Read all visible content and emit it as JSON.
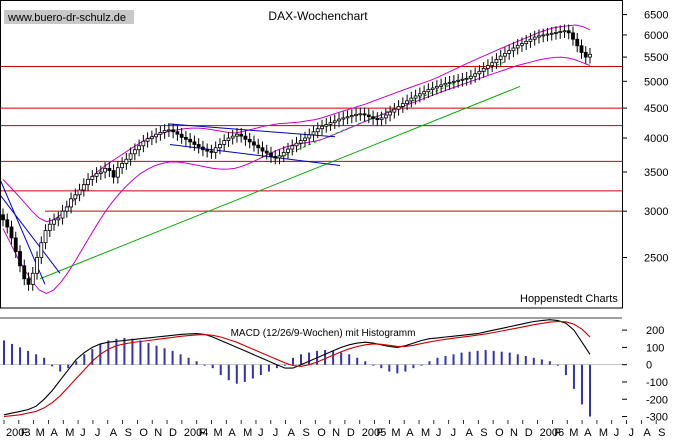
{
  "header": {
    "watermark": "www.buero-dr-schulz.de",
    "title": "DAX-Wochenchart",
    "source": "Hoppenstedt Charts",
    "macd_title": "MACD (12/26/9-Wochen) mit Histogramm"
  },
  "colors": {
    "candles": "#000000",
    "bollinger": "#cc00cc",
    "trend_green": "#00aa00",
    "trend_blue": "#0000cc",
    "support_red": "#cc0000",
    "macd_line": "#000000",
    "signal_line": "#cc0000",
    "histogram": "#3333aa",
    "watermark_bg": "#c8c8c8"
  },
  "chart_data": [
    {
      "type": "candlestick",
      "title": "DAX-Wochenchart",
      "scale": "log",
      "ylim": [
        2050,
        6750
      ],
      "y_ticks": [
        2500,
        3000,
        3500,
        4000,
        4500,
        5000,
        5500,
        6000,
        6500
      ],
      "x_month_labels": [
        "2003",
        "F",
        "M",
        "A",
        "M",
        "J",
        "J",
        "A",
        "S",
        "O",
        "N",
        "D",
        "2004",
        "F",
        "M",
        "A",
        "M",
        "J",
        "J",
        "A",
        "S",
        "O",
        "N",
        "D",
        "2005",
        "F",
        "M",
        "A",
        "M",
        "J",
        "J",
        "A",
        "S",
        "O",
        "N",
        "D",
        "2006",
        "F",
        "M",
        "A",
        "M",
        "J",
        "J",
        "A",
        "S"
      ],
      "horizontal_levels": [
        5300,
        4500,
        4200,
        3650,
        3250,
        3000
      ],
      "closes": [
        2900,
        2820,
        2700,
        2560,
        2420,
        2300,
        2250,
        2350,
        2500,
        2650,
        2780,
        2850,
        2900,
        2920,
        3000,
        3050,
        3150,
        3200,
        3260,
        3330,
        3400,
        3440,
        3480,
        3500,
        3550,
        3520,
        3430,
        3560,
        3620,
        3680,
        3760,
        3820,
        3880,
        3950,
        3990,
        4020,
        4060,
        4090,
        4120,
        4130,
        4100,
        4060,
        4010,
        3980,
        3940,
        3900,
        3860,
        3820,
        3800,
        3780,
        3850,
        3900,
        3960,
        4000,
        4030,
        4060,
        4030,
        3980,
        3940,
        3890,
        3850,
        3800,
        3770,
        3720,
        3700,
        3730,
        3780,
        3830,
        3880,
        3920,
        3960,
        4000,
        4050,
        4100,
        4150,
        4190,
        4220,
        4250,
        4280,
        4310,
        4330,
        4350,
        4370,
        4390,
        4400,
        4380,
        4350,
        4320,
        4300,
        4330,
        4380,
        4430,
        4480,
        4530,
        4580,
        4630,
        4680,
        4720,
        4760,
        4800,
        4840,
        4870,
        4900,
        4930,
        4960,
        4980,
        5000,
        5020,
        5040,
        5060,
        5100,
        5150,
        5200,
        5260,
        5320,
        5380,
        5450,
        5520,
        5580,
        5640,
        5700,
        5760,
        5800,
        5850,
        5900,
        5950,
        5980,
        6000,
        6020,
        6040,
        6060,
        6080,
        6100,
        6050,
        5900,
        5750,
        5600,
        5500,
        5560
      ],
      "bollinger_upper": [
        3400,
        3300,
        3200,
        3100,
        3000,
        2920,
        2880,
        2900,
        2960,
        3050,
        3160,
        3280,
        3400,
        3500,
        3580,
        3650,
        3720,
        3790,
        3860,
        3930,
        3990,
        4040,
        4080,
        4110,
        4130,
        4150,
        4160,
        4160,
        4150,
        4130,
        4110,
        4090,
        4080,
        4100,
        4130,
        4160,
        4190,
        4210,
        4230,
        4240,
        4250,
        4260,
        4280,
        4300,
        4330,
        4370,
        4410,
        4450,
        4490,
        4530,
        4570,
        4620,
        4670,
        4720,
        4770,
        4820,
        4870,
        4920,
        4970,
        5020,
        5080,
        5150,
        5220,
        5290,
        5360,
        5430,
        5500,
        5570,
        5640,
        5710,
        5780,
        5850,
        5920,
        5990,
        6060,
        6120,
        6170,
        6200,
        6220,
        6240,
        6200,
        6120
      ],
      "bollinger_lower": [
        2800,
        2650,
        2500,
        2380,
        2280,
        2200,
        2170,
        2200,
        2270,
        2360,
        2470,
        2590,
        2720,
        2850,
        2980,
        3100,
        3210,
        3310,
        3400,
        3480,
        3540,
        3590,
        3620,
        3640,
        3640,
        3630,
        3610,
        3590,
        3570,
        3550,
        3540,
        3540,
        3550,
        3580,
        3620,
        3670,
        3720,
        3770,
        3820,
        3860,
        3890,
        3910,
        3930,
        3950,
        3980,
        4020,
        4070,
        4120,
        4170,
        4220,
        4270,
        4320,
        4370,
        4420,
        4470,
        4520,
        4570,
        4620,
        4670,
        4720,
        4770,
        4820,
        4870,
        4920,
        4970,
        5020,
        5070,
        5120,
        5170,
        5220,
        5270,
        5320,
        5360,
        5400,
        5440,
        5470,
        5490,
        5500,
        5480,
        5440,
        5380,
        5320
      ]
    },
    {
      "type": "line+bar",
      "title": "MACD (12/26/9-Wochen) mit Histogramm",
      "ylim": [
        -320,
        270
      ],
      "y_ticks": [
        200,
        100,
        0,
        -100,
        -200,
        -300
      ],
      "macd": [
        -290,
        -280,
        -270,
        -260,
        -240,
        -200,
        -150,
        -90,
        -30,
        30,
        70,
        100,
        120,
        130,
        135,
        140,
        145,
        150,
        155,
        160,
        165,
        170,
        175,
        178,
        180,
        175,
        160,
        140,
        120,
        100,
        80,
        60,
        40,
        20,
        0,
        -20,
        -20,
        0,
        20,
        40,
        60,
        80,
        100,
        115,
        125,
        130,
        125,
        115,
        105,
        100,
        110,
        125,
        140,
        150,
        155,
        160,
        165,
        170,
        175,
        180,
        190,
        200,
        210,
        220,
        230,
        240,
        250,
        255,
        260,
        255,
        240,
        200,
        130,
        60
      ],
      "signal": [
        -300,
        -295,
        -290,
        -280,
        -270,
        -250,
        -220,
        -180,
        -130,
        -80,
        -30,
        20,
        60,
        90,
        110,
        120,
        128,
        134,
        140,
        146,
        152,
        158,
        164,
        168,
        172,
        174,
        170,
        160,
        145,
        130,
        110,
        90,
        70,
        50,
        30,
        10,
        -5,
        -10,
        0,
        15,
        35,
        55,
        75,
        92,
        105,
        115,
        120,
        118,
        112,
        106,
        106,
        112,
        122,
        132,
        140,
        147,
        153,
        159,
        165,
        171,
        178,
        186,
        195,
        204,
        213,
        222,
        231,
        239,
        246,
        250,
        248,
        235,
        205,
        160
      ],
      "histogram": [
        140,
        120,
        100,
        80,
        60,
        40,
        -10,
        -40,
        -20,
        20,
        60,
        90,
        120,
        140,
        150,
        155,
        150,
        140,
        125,
        110,
        95,
        80,
        60,
        40,
        20,
        0,
        -20,
        -60,
        -90,
        -110,
        -100,
        -80,
        -60,
        -40,
        -20,
        0,
        40,
        60,
        70,
        80,
        85,
        80,
        70,
        60,
        40,
        20,
        0,
        -20,
        -40,
        -50,
        -40,
        -20,
        0,
        20,
        40,
        50,
        60,
        70,
        75,
        80,
        85,
        80,
        75,
        70,
        60,
        50,
        40,
        30,
        20,
        0,
        -60,
        -140,
        -230,
        -300
      ]
    }
  ]
}
